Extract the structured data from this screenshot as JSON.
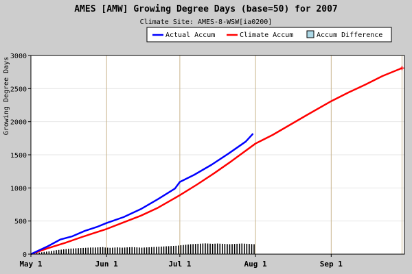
{
  "chart_data": {
    "type": "line",
    "title": "AMES [AMW] Growing Degree Days (base=50) for 2007",
    "subtitle": "Climate Site: AMES-8-WSW[ia0200]",
    "ylabel": "Growing Degree Days",
    "xlabel": "",
    "ylim": [
      0,
      3000
    ],
    "yticks": [
      0,
      500,
      1000,
      1500,
      2000,
      2500,
      3000
    ],
    "x_domain": [
      "2007-05-01",
      "2007-10-01"
    ],
    "xticks": [
      {
        "date": "2007-05-01",
        "label": "May 1"
      },
      {
        "date": "2007-06-01",
        "label": "Jun 1"
      },
      {
        "date": "2007-07-01",
        "label": "Jul 1"
      },
      {
        "date": "2007-08-01",
        "label": "Aug 1"
      },
      {
        "date": "2007-09-01",
        "label": "Sep 1"
      }
    ],
    "grid": true,
    "legend_position": "top-right",
    "series": [
      {
        "name": "Actual Accum",
        "color": "#0000ff",
        "kind": "line",
        "points": [
          [
            "2007-05-01",
            0
          ],
          [
            "2007-05-08",
            120
          ],
          [
            "2007-05-13",
            220
          ],
          [
            "2007-05-18",
            270
          ],
          [
            "2007-05-23",
            350
          ],
          [
            "2007-05-28",
            410
          ],
          [
            "2007-06-01",
            470
          ],
          [
            "2007-06-08",
            560
          ],
          [
            "2007-06-15",
            680
          ],
          [
            "2007-06-22",
            830
          ],
          [
            "2007-06-29",
            990
          ],
          [
            "2007-07-01",
            1090
          ],
          [
            "2007-07-07",
            1200
          ],
          [
            "2007-07-14",
            1350
          ],
          [
            "2007-07-21",
            1520
          ],
          [
            "2007-07-28",
            1700
          ],
          [
            "2007-07-31",
            1820
          ]
        ]
      },
      {
        "name": "Climate Accum",
        "color": "#ff0000",
        "kind": "line",
        "points": [
          [
            "2007-05-01",
            0
          ],
          [
            "2007-05-08",
            90
          ],
          [
            "2007-05-15",
            170
          ],
          [
            "2007-05-22",
            260
          ],
          [
            "2007-06-01",
            380
          ],
          [
            "2007-06-08",
            480
          ],
          [
            "2007-06-15",
            580
          ],
          [
            "2007-06-22",
            700
          ],
          [
            "2007-07-01",
            890
          ],
          [
            "2007-07-08",
            1050
          ],
          [
            "2007-07-15",
            1220
          ],
          [
            "2007-07-22",
            1400
          ],
          [
            "2007-08-01",
            1670
          ],
          [
            "2007-08-08",
            1800
          ],
          [
            "2007-08-15",
            1950
          ],
          [
            "2007-08-22",
            2100
          ],
          [
            "2007-09-01",
            2310
          ],
          [
            "2007-09-08",
            2440
          ],
          [
            "2007-09-15",
            2560
          ],
          [
            "2007-09-22",
            2690
          ],
          [
            "2007-09-30",
            2810
          ]
        ]
      },
      {
        "name": "Accum Difference",
        "color": "#add8e6",
        "kind": "bar",
        "daily": [
          6,
          12,
          18,
          24,
          28,
          34,
          38,
          42,
          48,
          54,
          60,
          64,
          68,
          72,
          76,
          80,
          84,
          86,
          88,
          90,
          92,
          94,
          96,
          98,
          100,
          100,
          100,
          102,
          104,
          106,
          100,
          98,
          96,
          98,
          100,
          102,
          100,
          98,
          100,
          102,
          104,
          106,
          104,
          102,
          100,
          98,
          100,
          102,
          104,
          106,
          108,
          110,
          112,
          114,
          116,
          118,
          120,
          122,
          124,
          126,
          130,
          134,
          138,
          142,
          146,
          150,
          152,
          154,
          156,
          158,
          160,
          162,
          160,
          158,
          156,
          158,
          160,
          158,
          156,
          154,
          152,
          150,
          152,
          154,
          156,
          158,
          160,
          158,
          156,
          154,
          152,
          150
        ]
      }
    ]
  }
}
